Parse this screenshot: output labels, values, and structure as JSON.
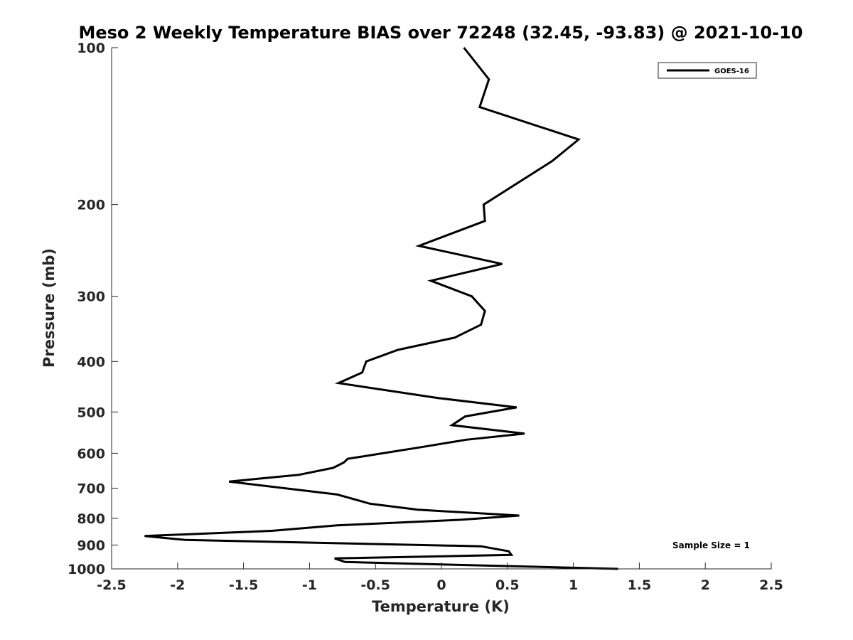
{
  "chart_data": {
    "type": "line",
    "title": "Meso 2 Weekly Temperature BIAS over 72248 (32.45, -93.83) @ 2021-10-10",
    "xlabel": "Temperature (K)",
    "ylabel": "Pressure (mb)",
    "xlim": [
      -2.5,
      2.5
    ],
    "ylim": [
      100,
      1000
    ],
    "y_scale": "log",
    "y_reversed": true,
    "x_ticks": [
      -2.5,
      -2,
      -1.5,
      -1,
      -0.5,
      0,
      0.5,
      1,
      1.5,
      2,
      2.5
    ],
    "x_tick_labels": [
      "-2.5",
      "-2",
      "-1.5",
      "-1",
      "-0.5",
      "0",
      "0.5",
      "1",
      "1.5",
      "2",
      "2.5"
    ],
    "y_ticks": [
      100,
      200,
      300,
      400,
      500,
      600,
      700,
      800,
      900,
      1000
    ],
    "y_tick_labels": [
      "100",
      "200",
      "300",
      "400",
      "500",
      "600",
      "700",
      "800",
      "900",
      "1000"
    ],
    "grid": false,
    "legend_position": "top-right",
    "annotation": "Sample Size = 1",
    "series": [
      {
        "name": "GOES-16",
        "color": "#000000",
        "x": [
          0.17,
          0.36,
          0.29,
          1.04,
          0.84,
          0.32,
          0.33,
          -0.17,
          0.46,
          -0.08,
          0.23,
          0.33,
          0.3,
          0.1,
          -0.33,
          -0.57,
          -0.6,
          -0.78,
          -0.03,
          0.57,
          0.18,
          0.08,
          0.63,
          0.19,
          -0.17,
          -0.71,
          -0.74,
          -0.82,
          -1.08,
          -1.61,
          -0.79,
          -0.54,
          -0.18,
          0.59,
          0.15,
          -0.79,
          -1.28,
          -2.25,
          -1.94,
          0.3,
          0.51,
          0.53,
          -0.81,
          -0.73,
          1.34
        ],
        "y": [
          100,
          115,
          130,
          150,
          165,
          200,
          215,
          240,
          260,
          280,
          300,
          320,
          340,
          360,
          380,
          400,
          420,
          440,
          470,
          490,
          510,
          530,
          550,
          565,
          585,
          615,
          625,
          640,
          660,
          680,
          720,
          750,
          770,
          790,
          805,
          825,
          845,
          865,
          880,
          905,
          925,
          940,
          955,
          970,
          1000
        ]
      }
    ]
  }
}
